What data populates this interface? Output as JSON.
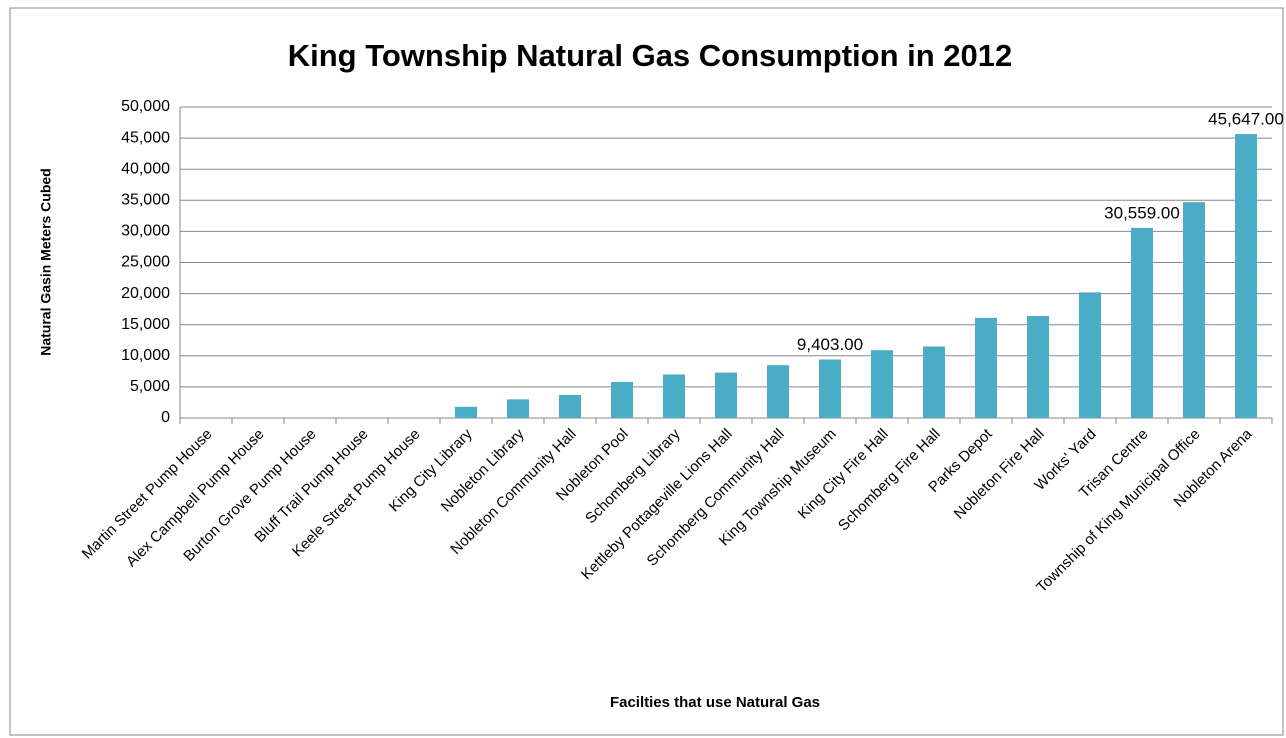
{
  "chart_data": {
    "type": "bar",
    "title": "King Township Natural Gas Consumption in 2012",
    "y_label": "Natural Gasin Meters Cubed",
    "x_label": "Facilties that use Natural Gas",
    "categories": [
      "Martin Street Pump House",
      "Alex Campbell Pump House",
      "Burton Grove Pump House",
      "Bluff Trail Pump House",
      "Keele Street Pump House",
      "King City Library",
      "Nobleton Library",
      "Nobleton Community Hall",
      "Nobleton Pool",
      "Schomberg Library",
      "Kettleby Pottageville Lions Hall",
      "Schomberg Community Hall",
      "King Township Museum",
      "King City Fire Hall",
      "Schomberg Fire Hall",
      "Parks Depot",
      "Nobleton Fire Hall",
      "Works' Yard",
      "Trisan Centre",
      "Township of King Municipal Office",
      "Nobleton Arena"
    ],
    "values": [
      0,
      0,
      0,
      0,
      0,
      1800,
      3000,
      3700,
      5800,
      7000,
      7300,
      8500,
      9403,
      10900,
      11500,
      16100,
      16400,
      20200,
      30559,
      34700,
      45647
    ],
    "value_labels": [
      null,
      null,
      null,
      null,
      null,
      null,
      null,
      null,
      null,
      null,
      null,
      null,
      "9,403.00",
      null,
      null,
      null,
      null,
      null,
      "30,559.00",
      null,
      "45,647.00"
    ],
    "color": "#4bacc6",
    "ylim": [
      0,
      50000
    ],
    "yticks": [
      0,
      {
        "value": 5000,
        "label": "5,000"
      },
      {
        "value": 10000,
        "label": "10,000"
      },
      {
        "value": 15000,
        "label": "15,000"
      },
      {
        "value": 20000,
        "label": "20,000"
      },
      {
        "value": 25000,
        "label": "25,000"
      },
      {
        "value": 30000,
        "label": "30,000"
      },
      {
        "value": 35000,
        "label": "35,000"
      },
      {
        "value": 40000,
        "label": "40,000"
      },
      {
        "value": 45000,
        "label": "45,000"
      },
      {
        "value": 50000,
        "label": "50,000"
      }
    ],
    "grid": true
  }
}
